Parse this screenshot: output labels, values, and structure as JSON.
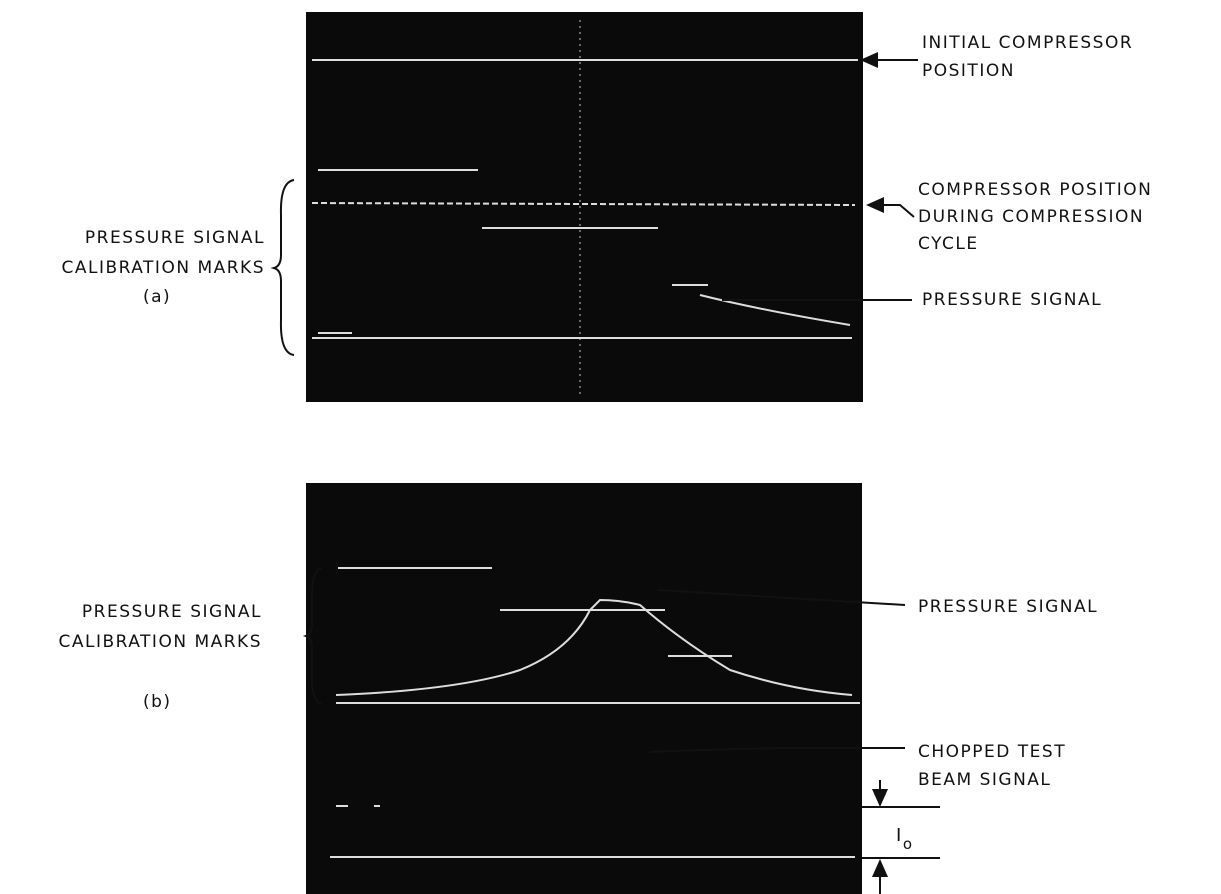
{
  "panels": [
    {
      "label": "(a)",
      "left_label": [
        "PRESSURE SIGNAL",
        "CALIBRATION MARKS"
      ],
      "callouts": [
        {
          "lines": [
            "INITIAL COMPRESSOR",
            "POSITION"
          ]
        },
        {
          "lines": [
            "COMPRESSOR POSITION",
            "DURING COMPRESSION",
            "CYCLE"
          ]
        },
        {
          "lines": [
            "PRESSURE SIGNAL"
          ]
        }
      ]
    },
    {
      "label": "(b)",
      "left_label": [
        "PRESSURE SIGNAL",
        "CALIBRATION MARKS"
      ],
      "callouts": [
        {
          "lines": [
            "PRESSURE SIGNAL"
          ]
        },
        {
          "lines": [
            "CHOPPED TEST",
            "BEAM SIGNAL"
          ]
        }
      ],
      "intensity_label": {
        "main": "I",
        "subscript": "o"
      }
    }
  ]
}
